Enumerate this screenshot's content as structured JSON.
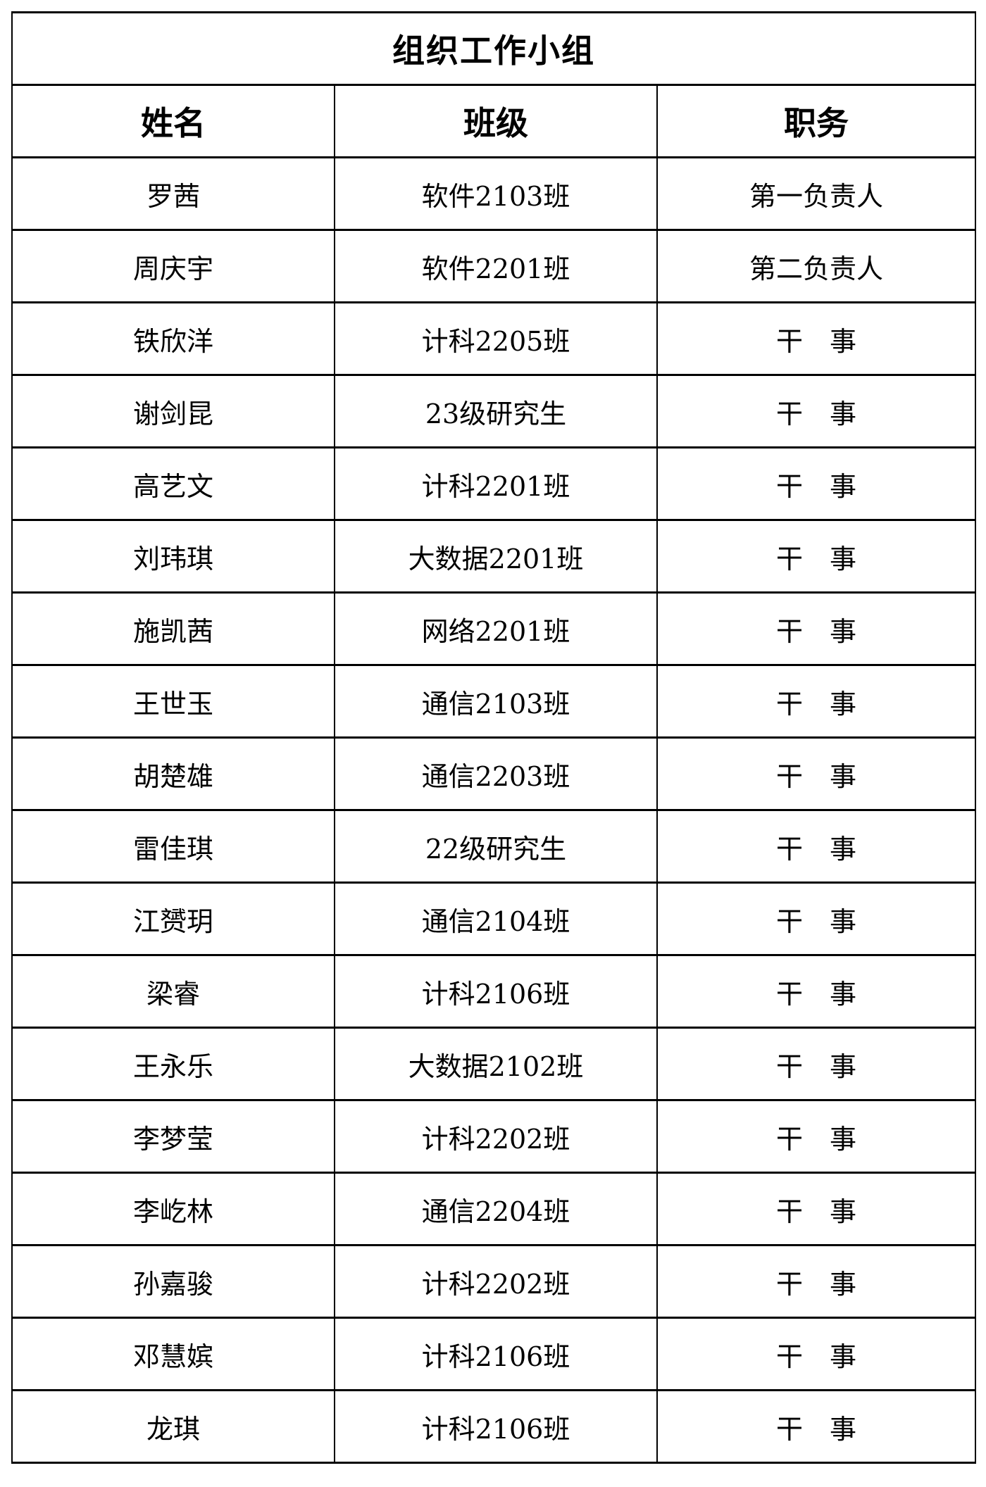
{
  "title": "组织工作小组",
  "headers": [
    "姓名",
    "班级",
    "职务"
  ],
  "rows": [
    [
      "罗茜",
      "软件2103班",
      "第一负责人"
    ],
    [
      "周庆宇",
      "软件2201班",
      "第二负责人"
    ],
    [
      "铁欣洋",
      "计科2205班",
      "干　事"
    ],
    [
      "谢剑昆",
      "23级研究生",
      "干　事"
    ],
    [
      "高艺文",
      "计科2201班",
      "干　事"
    ],
    [
      "刘玮琪",
      "大数据2201班",
      "干　事"
    ],
    [
      "施凯茜",
      "网络2201班",
      "干　事"
    ],
    [
      "王世玉",
      "通信2103班",
      "干　事"
    ],
    [
      "胡楚雄",
      "通信2203班",
      "干　事"
    ],
    [
      "雷佳琪",
      "22级研究生",
      "干　事"
    ],
    [
      "江赟玥",
      "通信2104班",
      "干　事"
    ],
    [
      "梁睿",
      "计科2106班",
      "干　事"
    ],
    [
      "王永乐",
      "大数据2102班",
      "干　事"
    ],
    [
      "李梦莹",
      "计科2202班",
      "干　事"
    ],
    [
      "李屹林",
      "通信2204班",
      "干　事"
    ],
    [
      "孙嘉骏",
      "计科2202班",
      "干　事"
    ],
    [
      "邓慧嫔",
      "计科2106班",
      "干　事"
    ],
    [
      "龙琪",
      "计科2106班",
      "干　事"
    ]
  ]
}
